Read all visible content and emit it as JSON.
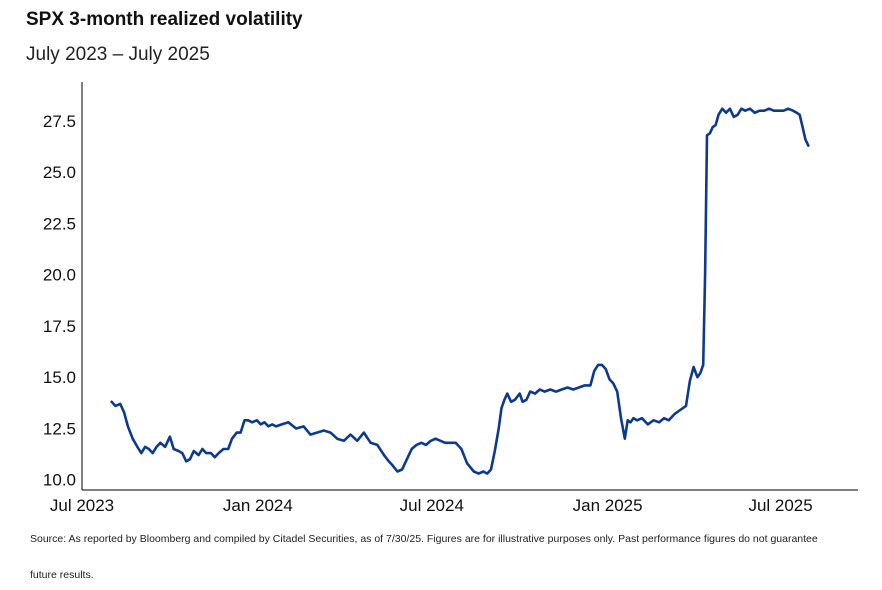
{
  "title": "SPX 3-month realized volatility",
  "subtitle": "July 2023 – July 2025",
  "source_line1": "Source: As reported by Bloomberg and compiled by Citadel Securities, as of 7/30/25. Figures are for illustrative purposes only. Past performance figures do not guarantee",
  "source_line2": "future results.",
  "chart_data": {
    "type": "line",
    "title": "SPX 3-month realized volatility",
    "subtitle": "July 2023 – July 2025",
    "xlabel": "",
    "ylabel": "",
    "grid": false,
    "xlim": [
      "2023-07-01",
      "2025-09-20"
    ],
    "ylim": [
      9.5,
      29.4
    ],
    "yticks": [
      10.0,
      12.5,
      15.0,
      17.5,
      20.0,
      22.5,
      25.0,
      27.5
    ],
    "ytick_labels": [
      "10.0",
      "12.5",
      "15.0",
      "17.5",
      "20.0",
      "22.5",
      "25.0",
      "27.5"
    ],
    "xticks": [
      "2023-07-01",
      "2024-01-01",
      "2024-07-01",
      "2025-01-01",
      "2025-07-01"
    ],
    "xtick_labels": [
      "Jul 2023",
      "Jan 2024",
      "Jul 2024",
      "Jan 2025",
      "Jul 2025"
    ],
    "line_color": "#0d3a8e",
    "series": [
      {
        "name": "",
        "x": [
          "2023-08-01",
          "2023-08-05",
          "2023-08-10",
          "2023-08-14",
          "2023-08-18",
          "2023-08-23",
          "2023-08-28",
          "2023-09-01",
          "2023-09-05",
          "2023-09-09",
          "2023-09-13",
          "2023-09-17",
          "2023-09-21",
          "2023-09-26",
          "2023-10-01",
          "2023-10-05",
          "2023-10-10",
          "2023-10-14",
          "2023-10-18",
          "2023-10-22",
          "2023-10-26",
          "2023-10-31",
          "2023-11-04",
          "2023-11-08",
          "2023-11-13",
          "2023-11-17",
          "2023-11-21",
          "2023-11-26",
          "2023-12-01",
          "2023-12-05",
          "2023-12-10",
          "2023-12-14",
          "2023-12-18",
          "2023-12-22",
          "2023-12-26",
          "2023-12-31",
          "2024-01-04",
          "2024-01-08",
          "2024-01-12",
          "2024-01-16",
          "2024-01-20",
          "2024-01-26",
          "2024-02-02",
          "2024-02-10",
          "2024-02-18",
          "2024-02-25",
          "2024-03-03",
          "2024-03-10",
          "2024-03-17",
          "2024-03-24",
          "2024-03-31",
          "2024-04-07",
          "2024-04-14",
          "2024-04-21",
          "2024-04-28",
          "2024-05-05",
          "2024-05-12",
          "2024-05-17",
          "2024-05-21",
          "2024-05-26",
          "2024-05-31",
          "2024-06-05",
          "2024-06-10",
          "2024-06-15",
          "2024-06-20",
          "2024-06-25",
          "2024-06-30",
          "2024-07-05",
          "2024-07-10",
          "2024-07-15",
          "2024-07-20",
          "2024-07-26",
          "2024-08-01",
          "2024-08-07",
          "2024-08-14",
          "2024-08-19",
          "2024-08-24",
          "2024-08-28",
          "2024-09-01",
          "2024-09-05",
          "2024-09-09",
          "2024-09-12",
          "2024-09-15",
          "2024-09-18",
          "2024-09-22",
          "2024-09-26",
          "2024-10-01",
          "2024-10-04",
          "2024-10-08",
          "2024-10-12",
          "2024-10-17",
          "2024-10-22",
          "2024-10-27",
          "2024-11-02",
          "2024-11-08",
          "2024-11-14",
          "2024-11-20",
          "2024-11-26",
          "2024-12-02",
          "2024-12-08",
          "2024-12-14",
          "2024-12-18",
          "2024-12-22",
          "2024-12-26",
          "2024-12-30",
          "2025-01-03",
          "2025-01-07",
          "2025-01-11",
          "2025-01-15",
          "2025-01-19",
          "2025-01-22",
          "2025-01-25",
          "2025-01-28",
          "2025-02-01",
          "2025-02-06",
          "2025-02-12",
          "2025-02-18",
          "2025-02-24",
          "2025-03-01",
          "2025-03-06",
          "2025-03-12",
          "2025-03-18",
          "2025-03-24",
          "2025-03-28",
          "2025-04-01",
          "2025-04-05",
          "2025-04-08",
          "2025-04-11",
          "2025-04-13",
          "2025-04-15",
          "2025-04-18",
          "2025-04-21",
          "2025-04-24",
          "2025-04-27",
          "2025-05-01",
          "2025-05-05",
          "2025-05-09",
          "2025-05-13",
          "2025-05-17",
          "2025-05-21",
          "2025-05-25",
          "2025-05-30",
          "2025-06-04",
          "2025-06-09",
          "2025-06-14",
          "2025-06-19",
          "2025-06-24",
          "2025-06-29",
          "2025-07-04",
          "2025-07-09",
          "2025-07-14",
          "2025-07-18",
          "2025-07-21",
          "2025-07-24",
          "2025-07-27",
          "2025-07-30"
        ],
        "y": [
          13.8,
          13.6,
          13.7,
          13.3,
          12.6,
          12.0,
          11.6,
          11.3,
          11.6,
          11.5,
          11.3,
          11.6,
          11.8,
          11.6,
          12.1,
          11.5,
          11.4,
          11.3,
          10.9,
          11.0,
          11.4,
          11.2,
          11.5,
          11.3,
          11.3,
          11.1,
          11.3,
          11.5,
          11.5,
          12.0,
          12.3,
          12.3,
          12.9,
          12.9,
          12.8,
          12.9,
          12.7,
          12.8,
          12.6,
          12.7,
          12.6,
          12.7,
          12.8,
          12.5,
          12.6,
          12.2,
          12.3,
          12.4,
          12.3,
          12.0,
          11.9,
          12.2,
          11.9,
          12.3,
          11.8,
          11.7,
          11.2,
          10.9,
          10.7,
          10.4,
          10.5,
          11.0,
          11.5,
          11.7,
          11.8,
          11.7,
          11.9,
          12.0,
          11.9,
          11.8,
          11.8,
          11.8,
          11.5,
          10.8,
          10.4,
          10.3,
          10.4,
          10.3,
          10.5,
          11.4,
          12.5,
          13.5,
          13.9,
          14.2,
          13.8,
          13.9,
          14.2,
          13.8,
          13.9,
          14.3,
          14.2,
          14.4,
          14.3,
          14.4,
          14.3,
          14.4,
          14.5,
          14.4,
          14.5,
          14.6,
          14.6,
          15.3,
          15.6,
          15.6,
          15.4,
          14.9,
          14.7,
          14.3,
          13.0,
          12.0,
          12.9,
          12.8,
          13.0,
          12.9,
          13.0,
          12.7,
          12.9,
          12.8,
          13.0,
          12.9,
          13.2,
          13.4,
          13.6,
          14.8,
          15.5,
          15.0,
          15.2,
          15.6,
          20.0,
          26.8,
          26.9,
          27.2,
          27.3,
          27.8,
          28.1,
          27.9,
          28.1,
          27.7,
          27.8,
          28.1,
          28.0,
          28.1,
          27.9,
          28.0,
          28.0,
          28.1,
          28.0,
          28.0,
          28.0,
          28.1,
          28.0,
          27.9,
          27.8,
          27.2,
          26.6,
          26.3
        ]
      }
    ]
  }
}
